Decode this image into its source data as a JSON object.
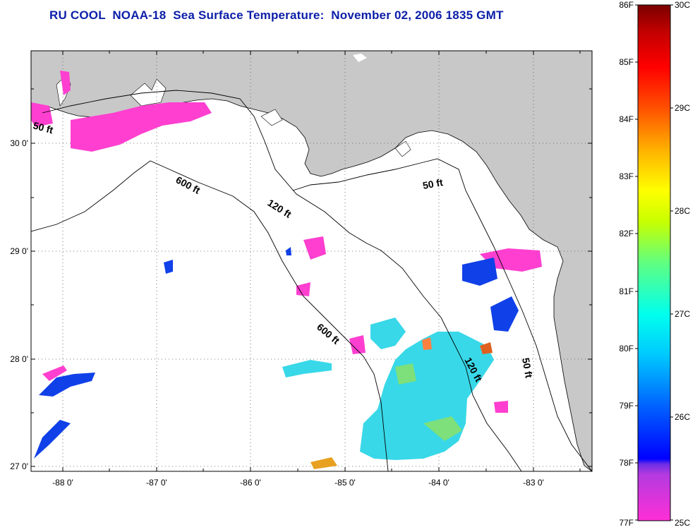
{
  "title": "RU COOL  NOAA-18  Sea Surface Temperature:  November 02, 2006 1835 GMT",
  "map": {
    "longitude_ticks": [
      "-88 0'",
      "-87 0'",
      "-86 0'",
      "-85 0'",
      "-84 0'",
      "-83 0'"
    ],
    "latitude_ticks": [
      "30 0'",
      "29 0'",
      "28 0'",
      "27 0'"
    ],
    "depth_contour_labels": [
      {
        "id": "c50w",
        "text": "50 ft"
      },
      {
        "id": "c600n",
        "text": "600 ft"
      },
      {
        "id": "c120n",
        "text": "120 ft"
      },
      {
        "id": "c50e",
        "text": "50 ft"
      },
      {
        "id": "c600s",
        "text": "600 ft"
      },
      {
        "id": "c120s",
        "text": "120 ft"
      },
      {
        "id": "c50s",
        "text": "50 ft"
      }
    ],
    "colors": {
      "land": "#c8c8c8",
      "cool_water": "#ff3fd0",
      "mid_water": "#33e0ee"
    }
  },
  "colorbar": {
    "fahrenheit_labels": [
      "86F",
      "85F",
      "84F",
      "83F",
      "82F",
      "81F",
      "80F",
      "79F",
      "78F",
      "77F"
    ],
    "celsius_labels": [
      "30C",
      "29C",
      "28C",
      "27C",
      "26C",
      "25C"
    ],
    "range_f": [
      77,
      86
    ],
    "range_c": [
      25,
      30
    ]
  }
}
